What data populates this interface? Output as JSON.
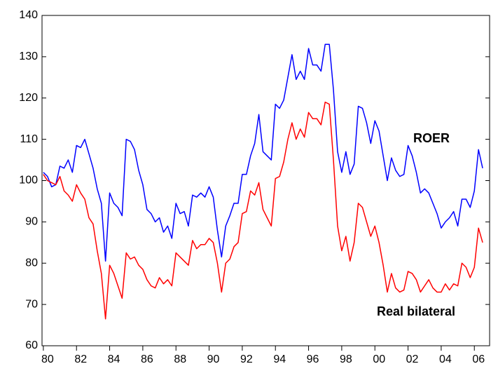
{
  "chart_data": {
    "type": "line",
    "annotations": [
      "ROER",
      "Real bilateral"
    ],
    "x": [
      1980,
      1980.25,
      1980.5,
      1980.75,
      1981,
      1981.25,
      1981.5,
      1981.75,
      1982,
      1982.25,
      1982.5,
      1982.75,
      1983,
      1983.25,
      1983.5,
      1983.75,
      1984,
      1984.25,
      1984.5,
      1984.75,
      1985,
      1985.25,
      1985.5,
      1985.75,
      1986,
      1986.25,
      1986.5,
      1986.75,
      1987,
      1987.25,
      1987.5,
      1987.75,
      1988,
      1988.25,
      1988.5,
      1988.75,
      1989,
      1989.25,
      1989.5,
      1989.75,
      1990,
      1990.25,
      1990.5,
      1990.75,
      1991,
      1991.25,
      1991.5,
      1991.75,
      1992,
      1992.25,
      1992.5,
      1992.75,
      1993,
      1993.25,
      1993.5,
      1993.75,
      1994,
      1994.25,
      1994.5,
      1994.75,
      1995,
      1995.25,
      1995.5,
      1995.75,
      1996,
      1996.25,
      1996.5,
      1996.75,
      1997,
      1997.25,
      1997.5,
      1997.75,
      1998,
      1998.25,
      1998.5,
      1998.75,
      1999,
      1999.25,
      1999.5,
      1999.75,
      2000,
      2000.25,
      2000.5,
      2000.75,
      2001,
      2001.25,
      2001.5,
      2001.75,
      2002,
      2002.25,
      2002.5,
      2002.75,
      2003,
      2003.25,
      2003.5,
      2003.75,
      2004,
      2004.25,
      2004.5,
      2004.75,
      2005,
      2005.25,
      2005.5,
      2005.75,
      2006,
      2006.25,
      2006.5
    ],
    "series": [
      {
        "name": "ROER",
        "color": "#0000ff",
        "values": [
          102,
          101,
          98.5,
          99,
          103.5,
          103,
          105,
          102,
          108.5,
          108,
          110,
          106.5,
          103,
          98,
          94.5,
          80.5,
          97,
          94.5,
          93.5,
          91.5,
          110,
          109.5,
          107.5,
          102.5,
          99,
          93,
          92,
          90,
          91,
          87.5,
          89,
          86,
          94.5,
          92,
          92.5,
          89,
          96.5,
          96,
          97,
          96,
          98.5,
          96,
          88,
          81.5,
          89,
          91.5,
          94.5,
          94.5,
          101.5,
          101.5,
          106,
          109,
          116,
          107,
          106,
          105,
          118.5,
          117.5,
          119.5,
          125,
          130.5,
          124.5,
          126.5,
          124.5,
          132,
          128,
          128,
          126.5,
          133,
          133,
          122,
          107,
          102,
          107,
          101.5,
          104,
          118,
          117.5,
          114,
          109,
          114.5,
          112,
          106,
          100,
          105.5,
          102.5,
          101,
          101.5,
          108.5,
          106,
          102,
          97,
          98,
          97,
          94.5,
          92,
          88.5,
          90,
          91,
          92.5,
          89,
          95.5,
          95.5,
          93.5,
          97.5,
          107.5,
          103
        ]
      },
      {
        "name": "Real bilateral",
        "color": "#ff0000",
        "values": [
          101.5,
          100,
          99.5,
          99,
          101,
          97.5,
          96.5,
          95,
          99,
          97,
          95.5,
          91,
          89.5,
          83,
          77.5,
          66.5,
          79.5,
          77.5,
          74.5,
          71.5,
          82.5,
          81,
          81.5,
          79.5,
          78.5,
          76,
          74.5,
          74,
          76.5,
          75,
          76,
          74.5,
          82.5,
          81.5,
          80.5,
          79.5,
          85.5,
          83.5,
          84.5,
          84.5,
          86,
          85,
          80,
          73,
          80,
          81,
          84,
          85,
          92,
          92.5,
          97.5,
          96.5,
          99.5,
          93,
          91,
          89,
          100.5,
          101,
          104.5,
          110,
          114,
          110,
          112.5,
          110.5,
          116.5,
          115,
          115,
          113.5,
          119,
          118.5,
          105,
          89,
          83,
          86.5,
          80.5,
          85,
          94.5,
          93.5,
          90,
          86.5,
          89,
          85,
          79.5,
          73,
          77.5,
          74,
          73,
          73.5,
          78,
          77.5,
          76,
          73,
          74.5,
          76,
          74,
          73,
          73,
          75,
          73.5,
          75,
          74.5,
          80,
          79,
          76.5,
          79,
          88.5,
          85
        ]
      }
    ],
    "xlim": [
      1979.92,
      2006.92
    ],
    "xticks": [
      {
        "value": 1980,
        "label": "80"
      },
      {
        "value": 1982,
        "label": "82"
      },
      {
        "value": 1984,
        "label": "84"
      },
      {
        "value": 1986,
        "label": "86"
      },
      {
        "value": 1988,
        "label": "88"
      },
      {
        "value": 1990,
        "label": "90"
      },
      {
        "value": 1992,
        "label": "92"
      },
      {
        "value": 1994,
        "label": "94"
      },
      {
        "value": 1996,
        "label": "96"
      },
      {
        "value": 1998,
        "label": "98"
      },
      {
        "value": 2000,
        "label": "00"
      },
      {
        "value": 2002,
        "label": "02"
      },
      {
        "value": 2004,
        "label": "04"
      },
      {
        "value": 2006,
        "label": "06"
      }
    ],
    "ylim": [
      60,
      140
    ],
    "yticks": [
      60,
      70,
      80,
      90,
      100,
      110,
      120,
      130,
      140
    ],
    "grid": false
  }
}
